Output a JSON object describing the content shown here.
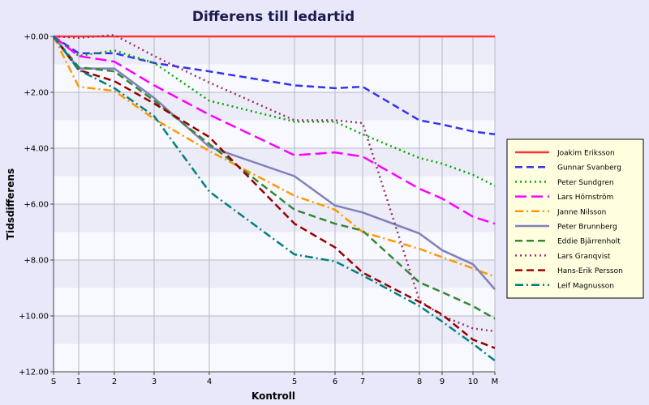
{
  "chart_data": {
    "type": "line",
    "title": "Differens till ledartid",
    "xlabel": "Kontroll",
    "ylabel": "Tidsdifferens",
    "x": [
      0,
      1,
      2,
      3,
      4,
      5,
      6,
      7,
      8,
      9,
      10,
      11
    ],
    "x_ticks": [
      "S",
      "1",
      "2",
      "3",
      "4",
      "5",
      "6",
      "7",
      "8",
      "9",
      "10",
      "M"
    ],
    "y_ticks": [
      "+0.00",
      "+2.00",
      "+4.00",
      "+6.00",
      "+8.00",
      "+10.00",
      "+12.00"
    ],
    "ylim": [
      0,
      12
    ],
    "y_inverted": true,
    "grid": true,
    "legend_position": "right",
    "series": [
      {
        "name": "Joakim Eriksson",
        "color": "#ff3333",
        "dash": "solid",
        "values": [
          0,
          0,
          0,
          0,
          0,
          0,
          0,
          0,
          0,
          0,
          0,
          0
        ]
      },
      {
        "name": "Gunnar Svanberg",
        "color": "#3333ee",
        "dash": "dash",
        "values": [
          0,
          0.6,
          0.6,
          0.95,
          1.25,
          1.75,
          1.85,
          1.8,
          3.0,
          3.15,
          3.4,
          3.5
        ]
      },
      {
        "name": "Peter Sundgren",
        "color": "#00aa00",
        "dash": "dot",
        "values": [
          0,
          0.7,
          0.5,
          0.95,
          2.3,
          3.05,
          3.05,
          3.5,
          4.35,
          4.55,
          4.95,
          5.35
        ]
      },
      {
        "name": "Lars Hörnström",
        "color": "#ff00ff",
        "dash": "longdash",
        "values": [
          0,
          0.7,
          0.9,
          1.75,
          2.8,
          4.25,
          4.15,
          4.3,
          5.45,
          5.8,
          6.45,
          6.7
        ]
      },
      {
        "name": "Janne Nilsson",
        "color": "#ff9900",
        "dash": "dashdot",
        "values": [
          0,
          1.8,
          1.95,
          2.95,
          4.1,
          5.7,
          6.2,
          7.0,
          7.6,
          7.9,
          8.3,
          8.6
        ]
      },
      {
        "name": "Peter Brunnberg",
        "color": "#8080bb",
        "dash": "solid",
        "values": [
          0,
          1.15,
          1.15,
          2.2,
          3.95,
          5.0,
          6.05,
          6.3,
          7.05,
          7.65,
          8.15,
          9.05
        ]
      },
      {
        "name": "Eddie Bjärrenholt",
        "color": "#338833",
        "dash": "dash",
        "values": [
          0,
          1.1,
          1.25,
          2.3,
          3.85,
          6.2,
          6.7,
          6.95,
          8.8,
          9.15,
          9.65,
          10.1
        ]
      },
      {
        "name": "Lars Granqvist",
        "color": "#993366",
        "dash": "dot",
        "values": [
          0,
          0.05,
          -0.05,
          0.7,
          1.65,
          3.0,
          3.0,
          3.1,
          9.45,
          10.0,
          10.45,
          10.55
        ]
      },
      {
        "name": "Hans-Erik Persson",
        "color": "#990000",
        "dash": "dash",
        "values": [
          0,
          1.2,
          1.6,
          2.4,
          3.6,
          6.7,
          7.55,
          8.45,
          9.5,
          9.95,
          10.85,
          11.15
        ]
      },
      {
        "name": "Leif Magnusson",
        "color": "#008080",
        "dash": "dashdot",
        "values": [
          0,
          1.2,
          1.85,
          2.85,
          5.55,
          7.8,
          8.05,
          8.55,
          9.65,
          10.2,
          11.0,
          11.6
        ]
      }
    ]
  }
}
